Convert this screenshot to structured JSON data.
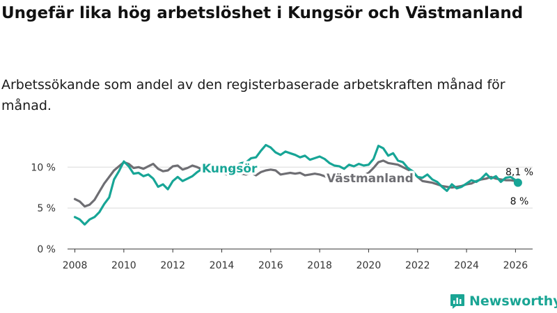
{
  "header": {
    "title": "Ungefär lika hög arbetslöshet i Kungsör och Västmanland",
    "subtitle": "Arbetssökande som andel av den registerbaserade arbetskraften månad för månad."
  },
  "brand": {
    "name": "Newsworthy",
    "color": "#1aa594"
  },
  "chart_data": {
    "type": "line",
    "title": "Ungefär lika hög arbetslöshet i Kungsör och Västmanland",
    "subtitle": "Arbetssökande som andel av den registerbaserade arbetskraften månad för månad.",
    "xlabel": "",
    "ylabel": "",
    "xlim": [
      2007.7,
      2026.7
    ],
    "ylim": [
      0,
      13
    ],
    "grid": true,
    "x_ticks": [
      {
        "value": 2008,
        "label": "2008"
      },
      {
        "value": 2010,
        "label": "2010"
      },
      {
        "value": 2012,
        "label": "2012"
      },
      {
        "value": 2014,
        "label": "2014"
      },
      {
        "value": 2016,
        "label": "2016"
      },
      {
        "value": 2018,
        "label": "2018"
      },
      {
        "value": 2020,
        "label": "2020"
      },
      {
        "value": 2022,
        "label": "2022"
      },
      {
        "value": 2024,
        "label": "2024"
      },
      {
        "value": 2026,
        "label": "2026"
      }
    ],
    "y_ticks": [
      {
        "value": 0,
        "label": "0 %"
      },
      {
        "value": 5,
        "label": "5 %"
      },
      {
        "value": 10,
        "label": "10 %"
      }
    ],
    "series": [
      {
        "name": "Västmanland",
        "color": "#6e6e73",
        "end_label": "8 %",
        "points": [
          [
            2008.0,
            6.1
          ],
          [
            2008.2,
            5.8
          ],
          [
            2008.4,
            5.2
          ],
          [
            2008.6,
            5.4
          ],
          [
            2008.8,
            6.0
          ],
          [
            2009.0,
            7.0
          ],
          [
            2009.2,
            8.0
          ],
          [
            2009.4,
            8.8
          ],
          [
            2009.6,
            9.6
          ],
          [
            2009.8,
            10.1
          ],
          [
            2010.0,
            10.6
          ],
          [
            2010.2,
            10.4
          ],
          [
            2010.4,
            9.9
          ],
          [
            2010.6,
            10.0
          ],
          [
            2010.8,
            9.8
          ],
          [
            2011.0,
            10.1
          ],
          [
            2011.2,
            10.4
          ],
          [
            2011.4,
            9.8
          ],
          [
            2011.6,
            9.5
          ],
          [
            2011.8,
            9.6
          ],
          [
            2012.0,
            10.1
          ],
          [
            2012.2,
            10.2
          ],
          [
            2012.4,
            9.7
          ],
          [
            2012.6,
            9.9
          ],
          [
            2012.8,
            10.2
          ],
          [
            2013.0,
            10.0
          ],
          [
            2013.2,
            9.7
          ],
          [
            2013.4,
            9.6
          ],
          [
            2013.6,
            9.5
          ],
          [
            2013.8,
            9.4
          ],
          [
            2014.0,
            9.3
          ],
          [
            2014.2,
            9.1
          ],
          [
            2014.4,
            9.0
          ],
          [
            2014.6,
            9.2
          ],
          [
            2014.8,
            9.2
          ],
          [
            2015.0,
            9.1
          ],
          [
            2015.2,
            9.3
          ],
          [
            2015.4,
            9.0
          ],
          [
            2015.6,
            9.4
          ],
          [
            2015.8,
            9.6
          ],
          [
            2016.0,
            9.7
          ],
          [
            2016.2,
            9.6
          ],
          [
            2016.4,
            9.1
          ],
          [
            2016.6,
            9.2
          ],
          [
            2016.8,
            9.3
          ],
          [
            2017.0,
            9.2
          ],
          [
            2017.2,
            9.3
          ],
          [
            2017.4,
            9.0
          ],
          [
            2017.6,
            9.1
          ],
          [
            2017.8,
            9.2
          ],
          [
            2018.0,
            9.1
          ],
          [
            2018.2,
            8.9
          ],
          [
            2018.4,
            8.6
          ],
          [
            2018.6,
            8.4
          ],
          [
            2018.8,
            8.3
          ],
          [
            2019.0,
            8.5
          ],
          [
            2019.2,
            8.4
          ],
          [
            2019.4,
            8.6
          ],
          [
            2019.6,
            8.8
          ],
          [
            2019.8,
            9.0
          ],
          [
            2020.0,
            9.3
          ],
          [
            2020.2,
            9.9
          ],
          [
            2020.4,
            10.6
          ],
          [
            2020.6,
            10.8
          ],
          [
            2020.8,
            10.5
          ],
          [
            2021.0,
            10.4
          ],
          [
            2021.2,
            10.3
          ],
          [
            2021.4,
            10.0
          ],
          [
            2021.6,
            9.7
          ],
          [
            2021.8,
            9.4
          ],
          [
            2022.0,
            8.8
          ],
          [
            2022.2,
            8.3
          ],
          [
            2022.4,
            8.2
          ],
          [
            2022.6,
            8.1
          ],
          [
            2022.8,
            7.9
          ],
          [
            2023.0,
            7.7
          ],
          [
            2023.2,
            7.6
          ],
          [
            2023.4,
            7.5
          ],
          [
            2023.6,
            7.6
          ],
          [
            2023.8,
            7.7
          ],
          [
            2024.0,
            7.9
          ],
          [
            2024.2,
            8.0
          ],
          [
            2024.4,
            8.3
          ],
          [
            2024.6,
            8.5
          ],
          [
            2024.8,
            8.6
          ],
          [
            2025.0,
            8.8
          ],
          [
            2025.2,
            8.6
          ],
          [
            2025.4,
            8.5
          ],
          [
            2025.6,
            8.4
          ],
          [
            2025.8,
            8.4
          ],
          [
            2026.0,
            8.3
          ],
          [
            2026.1,
            8.1
          ]
        ]
      },
      {
        "name": "Kungsör",
        "color": "#17a596",
        "end_label": "8,1 %",
        "points": [
          [
            2008.0,
            3.9
          ],
          [
            2008.2,
            3.6
          ],
          [
            2008.4,
            3.0
          ],
          [
            2008.6,
            3.6
          ],
          [
            2008.8,
            3.9
          ],
          [
            2009.0,
            4.5
          ],
          [
            2009.2,
            5.5
          ],
          [
            2009.4,
            6.3
          ],
          [
            2009.6,
            8.5
          ],
          [
            2009.8,
            9.5
          ],
          [
            2010.0,
            10.7
          ],
          [
            2010.2,
            10.1
          ],
          [
            2010.4,
            9.2
          ],
          [
            2010.6,
            9.3
          ],
          [
            2010.8,
            8.9
          ],
          [
            2011.0,
            9.1
          ],
          [
            2011.2,
            8.6
          ],
          [
            2011.4,
            7.6
          ],
          [
            2011.6,
            7.9
          ],
          [
            2011.8,
            7.3
          ],
          [
            2012.0,
            8.3
          ],
          [
            2012.2,
            8.8
          ],
          [
            2012.4,
            8.3
          ],
          [
            2012.6,
            8.6
          ],
          [
            2012.8,
            8.9
          ],
          [
            2013.0,
            9.4
          ],
          [
            2013.2,
            9.8
          ],
          [
            2013.4,
            9.9
          ],
          [
            2013.6,
            10.0
          ],
          [
            2013.8,
            9.8
          ],
          [
            2014.0,
            9.6
          ],
          [
            2014.2,
            10.0
          ],
          [
            2014.4,
            9.6
          ],
          [
            2014.6,
            10.2
          ],
          [
            2014.8,
            10.5
          ],
          [
            2015.0,
            10.6
          ],
          [
            2015.2,
            11.1
          ],
          [
            2015.4,
            11.2
          ],
          [
            2015.6,
            12.0
          ],
          [
            2015.8,
            12.7
          ],
          [
            2016.0,
            12.4
          ],
          [
            2016.2,
            11.8
          ],
          [
            2016.4,
            11.5
          ],
          [
            2016.6,
            11.9
          ],
          [
            2016.8,
            11.7
          ],
          [
            2017.0,
            11.5
          ],
          [
            2017.2,
            11.2
          ],
          [
            2017.4,
            11.4
          ],
          [
            2017.6,
            10.9
          ],
          [
            2017.8,
            11.1
          ],
          [
            2018.0,
            11.3
          ],
          [
            2018.2,
            11.0
          ],
          [
            2018.4,
            10.5
          ],
          [
            2018.6,
            10.2
          ],
          [
            2018.8,
            10.1
          ],
          [
            2019.0,
            9.8
          ],
          [
            2019.2,
            10.3
          ],
          [
            2019.4,
            10.1
          ],
          [
            2019.6,
            10.4
          ],
          [
            2019.8,
            10.2
          ],
          [
            2020.0,
            10.3
          ],
          [
            2020.2,
            11.0
          ],
          [
            2020.4,
            12.6
          ],
          [
            2020.6,
            12.3
          ],
          [
            2020.8,
            11.4
          ],
          [
            2021.0,
            11.7
          ],
          [
            2021.2,
            10.8
          ],
          [
            2021.4,
            10.6
          ],
          [
            2021.6,
            9.9
          ],
          [
            2021.8,
            9.5
          ],
          [
            2022.0,
            8.8
          ],
          [
            2022.2,
            8.7
          ],
          [
            2022.4,
            9.1
          ],
          [
            2022.6,
            8.5
          ],
          [
            2022.8,
            8.2
          ],
          [
            2023.0,
            7.6
          ],
          [
            2023.2,
            7.1
          ],
          [
            2023.4,
            7.9
          ],
          [
            2023.6,
            7.4
          ],
          [
            2023.8,
            7.6
          ],
          [
            2024.0,
            8.0
          ],
          [
            2024.2,
            8.4
          ],
          [
            2024.4,
            8.2
          ],
          [
            2024.6,
            8.6
          ],
          [
            2024.8,
            9.2
          ],
          [
            2025.0,
            8.6
          ],
          [
            2025.2,
            8.9
          ],
          [
            2025.4,
            8.2
          ],
          [
            2025.6,
            8.7
          ],
          [
            2025.8,
            8.8
          ],
          [
            2026.0,
            8.4
          ],
          [
            2026.1,
            8.1
          ]
        ]
      }
    ]
  }
}
